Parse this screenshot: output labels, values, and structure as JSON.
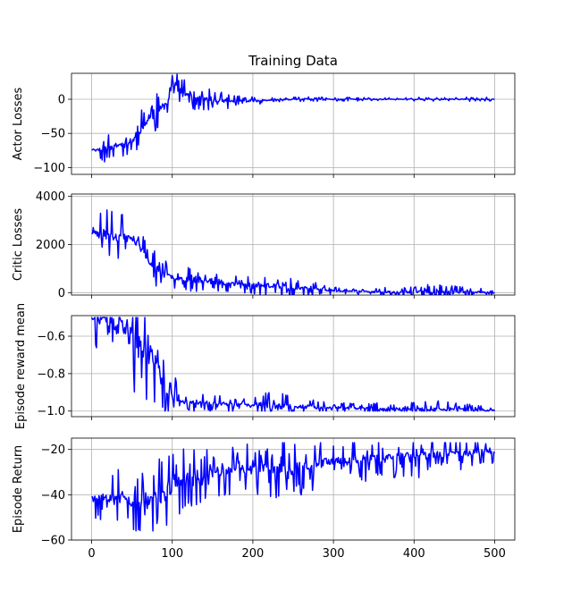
{
  "title": "Training Data",
  "chart_data": [
    {
      "type": "line",
      "ylabel": "Actor Losses",
      "xlim": [
        -25,
        525
      ],
      "ylim": [
        -110,
        38
      ],
      "xticks": [
        0,
        100,
        200,
        300,
        400,
        500
      ],
      "yticks": [
        -100,
        -50,
        0
      ],
      "grid": true,
      "color": "#0000ff",
      "envelope": [
        [
          0,
          -74
        ],
        [
          5,
          -74
        ],
        [
          10,
          -73
        ],
        [
          20,
          -71
        ],
        [
          30,
          -68
        ],
        [
          40,
          -65
        ],
        [
          50,
          -62
        ],
        [
          55,
          -55
        ],
        [
          60,
          -45
        ],
        [
          65,
          -36
        ],
        [
          70,
          -30
        ],
        [
          75,
          -25
        ],
        [
          80,
          -20
        ],
        [
          85,
          -15
        ],
        [
          90,
          -10
        ],
        [
          95,
          0
        ],
        [
          100,
          25
        ],
        [
          105,
          20
        ],
        [
          110,
          12
        ],
        [
          120,
          6
        ],
        [
          130,
          2
        ],
        [
          140,
          0
        ],
        [
          160,
          -2
        ],
        [
          180,
          -3
        ],
        [
          200,
          -2
        ],
        [
          220,
          -1
        ],
        [
          260,
          0
        ],
        [
          300,
          0
        ],
        [
          400,
          0
        ],
        [
          500,
          0
        ]
      ],
      "noise": [
        [
          0,
          0
        ],
        [
          5,
          4
        ],
        [
          15,
          22
        ],
        [
          30,
          20
        ],
        [
          45,
          18
        ],
        [
          55,
          25
        ],
        [
          60,
          30
        ],
        [
          70,
          32
        ],
        [
          85,
          28
        ],
        [
          100,
          22
        ],
        [
          120,
          22
        ],
        [
          150,
          15
        ],
        [
          180,
          10
        ],
        [
          200,
          6
        ],
        [
          230,
          4
        ],
        [
          300,
          3
        ],
        [
          400,
          3
        ],
        [
          500,
          3
        ]
      ],
      "noise_sign": "both",
      "seed": 11
    },
    {
      "type": "line",
      "ylabel": "Critic Losses",
      "xlim": [
        -25,
        525
      ],
      "ylim": [
        -100,
        4100
      ],
      "xticks": [
        0,
        100,
        200,
        300,
        400,
        500
      ],
      "yticks": [
        0,
        2000,
        4000
      ],
      "grid": true,
      "color": "#0000ff",
      "envelope": [
        [
          0,
          2450
        ],
        [
          10,
          2450
        ],
        [
          20,
          2400
        ],
        [
          40,
          2300
        ],
        [
          55,
          2100
        ],
        [
          60,
          1900
        ],
        [
          70,
          1300
        ],
        [
          80,
          1000
        ],
        [
          90,
          750
        ],
        [
          100,
          650
        ],
        [
          120,
          550
        ],
        [
          150,
          420
        ],
        [
          200,
          320
        ],
        [
          240,
          250
        ],
        [
          260,
          200
        ],
        [
          300,
          80
        ],
        [
          350,
          40
        ],
        [
          400,
          30
        ],
        [
          500,
          20
        ]
      ],
      "noise": [
        [
          0,
          0
        ],
        [
          5,
          1000
        ],
        [
          20,
          1200
        ],
        [
          40,
          1000
        ],
        [
          60,
          700
        ],
        [
          80,
          900
        ],
        [
          100,
          500
        ],
        [
          130,
          500
        ],
        [
          170,
          350
        ],
        [
          200,
          400
        ],
        [
          230,
          650
        ],
        [
          260,
          400
        ],
        [
          300,
          150
        ],
        [
          350,
          120
        ],
        [
          420,
          400
        ],
        [
          500,
          100
        ]
      ],
      "noise_sign": "both",
      "seed": 23
    },
    {
      "type": "line",
      "ylabel": "Episode reward mean",
      "xlim": [
        -25,
        525
      ],
      "ylim": [
        -1.03,
        -0.49
      ],
      "xticks": [
        0,
        100,
        200,
        300,
        400,
        500
      ],
      "yticks": [
        -1.0,
        -0.8,
        -0.6
      ],
      "grid": true,
      "color": "#0000ff",
      "envelope": [
        [
          0,
          -0.5
        ],
        [
          10,
          -0.52
        ],
        [
          30,
          -0.55
        ],
        [
          50,
          -0.6
        ],
        [
          60,
          -0.65
        ],
        [
          80,
          -0.75
        ],
        [
          95,
          -0.9
        ],
        [
          110,
          -0.95
        ],
        [
          150,
          -0.96
        ],
        [
          200,
          -0.97
        ],
        [
          260,
          -0.975
        ],
        [
          300,
          -0.985
        ],
        [
          400,
          -0.99
        ],
        [
          500,
          -0.995
        ]
      ],
      "noise": [
        [
          0,
          0.02
        ],
        [
          10,
          0.3
        ],
        [
          40,
          0.35
        ],
        [
          70,
          0.25
        ],
        [
          95,
          0.2
        ],
        [
          110,
          0.05
        ],
        [
          200,
          0.04
        ],
        [
          230,
          0.1
        ],
        [
          260,
          0.06
        ],
        [
          300,
          0.03
        ],
        [
          420,
          0.05
        ],
        [
          500,
          0.02
        ]
      ],
      "noise_sign": "both",
      "clip": [
        -1.0,
        -0.5
      ],
      "seed": 37
    },
    {
      "type": "line",
      "ylabel": "Episode Return",
      "xlim": [
        -25,
        525
      ],
      "ylim": [
        -60,
        -15
      ],
      "xticks": [
        0,
        100,
        200,
        300,
        400,
        500
      ],
      "yticks": [
        -60,
        -40,
        -20
      ],
      "grid": true,
      "color": "#0000ff",
      "envelope": [
        [
          0,
          -41
        ],
        [
          10,
          -41
        ],
        [
          40,
          -42
        ],
        [
          60,
          -44
        ],
        [
          70,
          -43
        ],
        [
          90,
          -40
        ],
        [
          110,
          -33
        ],
        [
          150,
          -30
        ],
        [
          200,
          -29
        ],
        [
          250,
          -28
        ],
        [
          300,
          -25
        ],
        [
          350,
          -24
        ],
        [
          400,
          -23
        ],
        [
          450,
          -22
        ],
        [
          500,
          -21
        ]
      ],
      "noise": [
        [
          0,
          0
        ],
        [
          5,
          10
        ],
        [
          30,
          14
        ],
        [
          60,
          15
        ],
        [
          90,
          18
        ],
        [
          120,
          14
        ],
        [
          200,
          12
        ],
        [
          250,
          14
        ],
        [
          300,
          10
        ],
        [
          400,
          10
        ],
        [
          450,
          8
        ],
        [
          500,
          6
        ]
      ],
      "noise_sign": "both",
      "clip": [
        -58,
        -17
      ],
      "seed": 53
    }
  ]
}
